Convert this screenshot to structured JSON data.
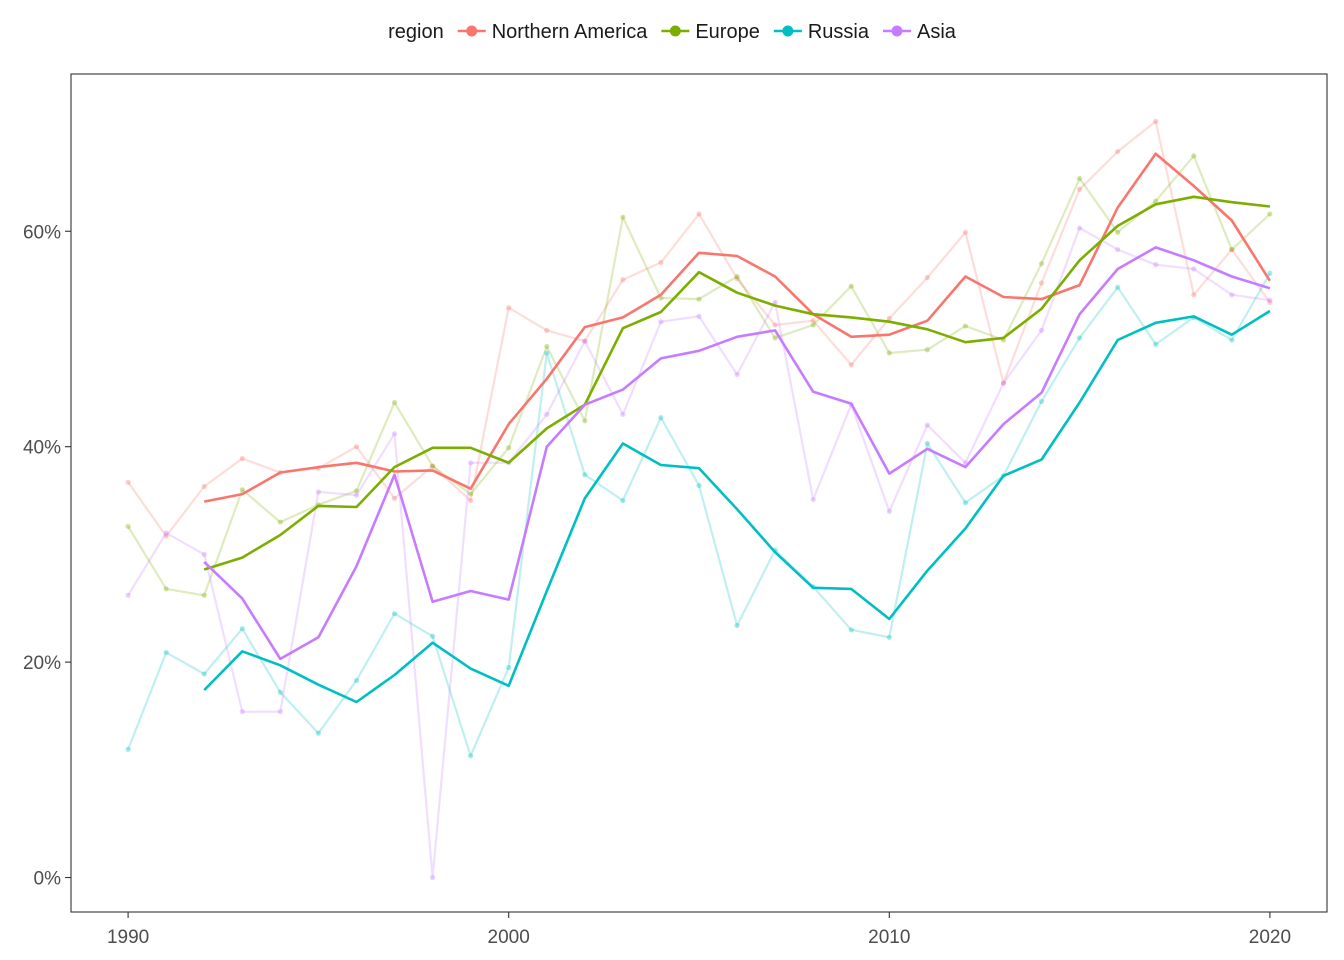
{
  "chart_data": {
    "type": "line",
    "legend": {
      "title": "region",
      "placement": "top"
    },
    "x_ticks": [
      1990,
      2000,
      2010,
      2020
    ],
    "y_ticks": [
      0,
      20,
      40,
      60
    ],
    "y_tick_labels": [
      "0%",
      "20%",
      "40%",
      "60%"
    ],
    "xlim": [
      1988.5,
      2021.5
    ],
    "ylim": [
      -3.2,
      74.6
    ],
    "grid": false,
    "series": [
      {
        "name": "Northern America",
        "color": "#F8766D",
        "raw_x": [
          1990,
          1991,
          1992,
          1993,
          1994,
          1995,
          1996,
          1997,
          1998,
          1999,
          2000,
          2001,
          2002,
          2003,
          2004,
          2005,
          2006,
          2007,
          2008,
          2009,
          2010,
          2011,
          2012,
          2013,
          2014,
          2015,
          2016,
          2017,
          2018,
          2019,
          2020
        ],
        "raw_y": [
          36.7,
          31.7,
          36.3,
          38.9,
          37.6,
          38.0,
          40.0,
          35.2,
          38.2,
          35.0,
          52.9,
          50.8,
          49.8,
          55.5,
          57.1,
          61.6,
          55.6,
          51.3,
          51.7,
          47.6,
          51.9,
          55.7,
          59.9,
          45.9,
          55.2,
          63.9,
          67.4,
          70.2,
          54.1,
          58.3,
          53.4
        ],
        "trend_x": [
          1992,
          1993,
          1994,
          1995,
          1996,
          1997,
          1998,
          1999,
          2000,
          2001,
          2002,
          2003,
          2004,
          2005,
          2006,
          2007,
          2008,
          2009,
          2010,
          2011,
          2012,
          2013,
          2014,
          2015,
          2016,
          2017,
          2018,
          2019,
          2020
        ],
        "trend_y": [
          34.9,
          35.6,
          37.6,
          38.1,
          38.5,
          37.7,
          37.8,
          36.1,
          42.1,
          46.3,
          51.1,
          52.0,
          54.1,
          58.0,
          57.7,
          55.8,
          52.3,
          50.2,
          50.4,
          51.7,
          55.8,
          53.9,
          53.7,
          55.0,
          62.2,
          67.2,
          64.2,
          61.0,
          55.4
        ]
      },
      {
        "name": "Europe",
        "color": "#7CAE00",
        "raw_x": [
          1990,
          1991,
          1992,
          1993,
          1994,
          1995,
          1996,
          1997,
          1998,
          1999,
          2000,
          2001,
          2002,
          2003,
          2004,
          2005,
          2006,
          2007,
          2008,
          2009,
          2010,
          2011,
          2012,
          2013,
          2014,
          2015,
          2016,
          2017,
          2018,
          2019,
          2020
        ],
        "raw_y": [
          32.6,
          26.8,
          26.2,
          36.0,
          33.0,
          34.6,
          35.9,
          44.1,
          38.2,
          35.6,
          39.9,
          49.3,
          42.4,
          61.3,
          53.8,
          53.7,
          55.8,
          50.1,
          51.3,
          54.9,
          48.7,
          49.0,
          51.2,
          49.9,
          57.0,
          64.9,
          59.9,
          62.8,
          67.0,
          58.3,
          61.6
        ],
        "trend_x": [
          1992,
          1993,
          1994,
          1995,
          1996,
          1997,
          1998,
          1999,
          2000,
          2001,
          2002,
          2003,
          2004,
          2005,
          2006,
          2007,
          2008,
          2009,
          2010,
          2011,
          2012,
          2013,
          2014,
          2015,
          2016,
          2017,
          2018,
          2019,
          2020
        ],
        "trend_y": [
          28.6,
          29.7,
          31.8,
          34.5,
          34.4,
          38.1,
          39.9,
          39.9,
          38.5,
          41.7,
          43.9,
          51.0,
          52.5,
          56.2,
          54.3,
          53.1,
          52.3,
          52.0,
          51.6,
          50.9,
          49.7,
          50.1,
          52.8,
          57.3,
          60.5,
          62.5,
          63.2,
          62.7,
          62.3
        ]
      },
      {
        "name": "Russia",
        "color": "#00BFC4",
        "raw_x": [
          1990,
          1991,
          1992,
          1993,
          1994,
          1995,
          1996,
          1997,
          1998,
          1999,
          2000,
          2001,
          2002,
          2003,
          2004,
          2005,
          2006,
          2007,
          2008,
          2009,
          2010,
          2011,
          2012,
          2013,
          2014,
          2015,
          2016,
          2017,
          2018,
          2019,
          2020
        ],
        "raw_y": [
          11.9,
          20.9,
          18.9,
          23.1,
          17.2,
          13.4,
          18.3,
          24.5,
          22.4,
          11.3,
          19.5,
          48.7,
          37.4,
          35.0,
          42.7,
          36.4,
          23.4,
          30.4,
          27.0,
          23.0,
          22.3,
          40.3,
          34.8,
          37.3,
          44.2,
          50.1,
          54.8,
          49.5,
          52.0,
          49.9,
          56.1
        ],
        "trend_x": [
          1992,
          1993,
          1994,
          1995,
          1996,
          1997,
          1998,
          1999,
          2000,
          2001,
          2002,
          2003,
          2004,
          2005,
          2006,
          2007,
          2008,
          2009,
          2010,
          2011,
          2012,
          2013,
          2014,
          2015,
          2016,
          2017,
          2018,
          2019,
          2020
        ],
        "trend_y": [
          17.4,
          21.0,
          19.7,
          17.9,
          16.3,
          18.8,
          21.8,
          19.4,
          17.8,
          26.6,
          35.2,
          40.3,
          38.3,
          38.0,
          34.2,
          30.2,
          26.9,
          26.8,
          24.0,
          28.5,
          32.4,
          37.3,
          38.8,
          44.1,
          49.9,
          51.5,
          52.1,
          50.4,
          52.6
        ]
      },
      {
        "name": "Asia",
        "color": "#C77CFF",
        "raw_x": [
          1990,
          1991,
          1992,
          1993,
          1994,
          1995,
          1996,
          1997,
          1998,
          1999,
          2000,
          2001,
          2002,
          2003,
          2004,
          2005,
          2006,
          2007,
          2008,
          2009,
          2010,
          2011,
          2012,
          2013,
          2014,
          2015,
          2016,
          2017,
          2018,
          2019,
          2020
        ],
        "raw_y": [
          26.2,
          32.0,
          30.0,
          15.4,
          15.4,
          35.8,
          35.5,
          41.2,
          0.0,
          38.5,
          38.5,
          43.0,
          49.8,
          43.0,
          51.6,
          52.1,
          46.7,
          53.4,
          35.1,
          43.9,
          34.0,
          42.0,
          38.5,
          45.9,
          50.8,
          60.3,
          58.3,
          56.9,
          56.5,
          54.1,
          53.6
        ],
        "trend_x": [
          1992,
          1993,
          1994,
          1995,
          1996,
          1997,
          1998,
          1999,
          2000,
          2001,
          2002,
          2003,
          2004,
          2005,
          2006,
          2007,
          2008,
          2009,
          2010,
          2011,
          2012,
          2013,
          2014,
          2015,
          2016,
          2017,
          2018,
          2019,
          2020
        ],
        "trend_y": [
          29.3,
          25.9,
          20.3,
          22.3,
          28.9,
          37.4,
          25.6,
          26.6,
          25.8,
          40.0,
          43.9,
          45.3,
          48.2,
          48.9,
          50.2,
          50.8,
          45.1,
          44.0,
          37.5,
          39.8,
          38.1,
          42.1,
          45.0,
          52.3,
          56.5,
          58.5,
          57.3,
          55.8,
          54.7
        ]
      }
    ]
  }
}
